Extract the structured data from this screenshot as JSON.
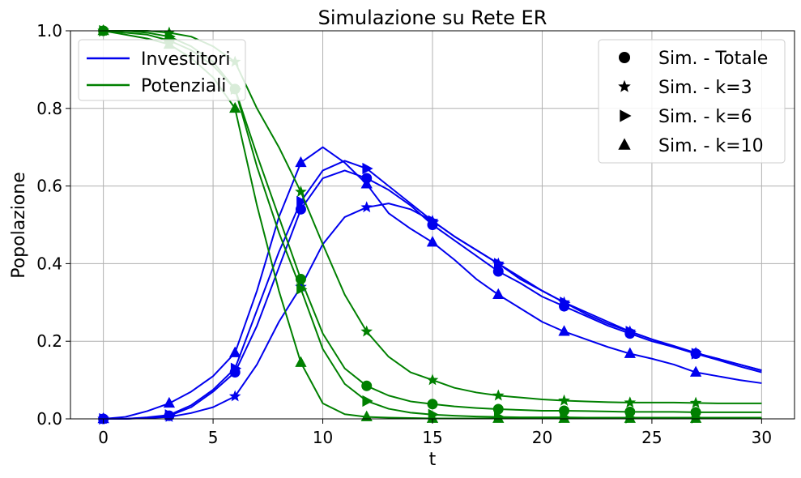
{
  "chart_data": {
    "type": "line",
    "title": "Simulazione su Rete ER",
    "xlabel": "t",
    "ylabel": "Popolazione",
    "xlim": [
      -1.5,
      31.5
    ],
    "ylim": [
      0,
      1
    ],
    "xticks": [
      0,
      5,
      10,
      15,
      20,
      25,
      30
    ],
    "yticks": [
      0.0,
      0.2,
      0.4,
      0.6,
      0.8,
      1.0
    ],
    "xtick_labels": [
      "0",
      "5",
      "10",
      "15",
      "20",
      "25",
      "30"
    ],
    "ytick_labels": [
      "0.0",
      "0.2",
      "0.4",
      "0.6",
      "0.8",
      "1.0"
    ],
    "grid": true,
    "colors": {
      "investitori": "#0000ee",
      "potenziali": "#008000"
    },
    "legend_lines": {
      "placement": "top-left",
      "entries": [
        {
          "label": "Investitori",
          "color": "#0000ee"
        },
        {
          "label": "Potenziali",
          "color": "#008000"
        }
      ]
    },
    "legend_markers": {
      "placement": "top-right",
      "entries": [
        {
          "label": "Sim. - Totale",
          "marker": "circle"
        },
        {
          "label": "Sim. - k=3",
          "marker": "star"
        },
        {
          "label": "Sim. - k=6",
          "marker": "triangle-right"
        },
        {
          "label": "Sim. - k=10",
          "marker": "triangle-up"
        }
      ]
    },
    "series": [
      {
        "group": "investitori",
        "marker": "circle",
        "x": [
          0,
          1,
          2,
          3,
          4,
          5,
          6,
          7,
          8,
          9,
          10,
          11,
          12,
          13,
          14,
          15,
          16,
          17,
          18,
          19,
          20,
          21,
          22,
          23,
          24,
          25,
          26,
          27,
          28,
          29,
          30
        ],
        "y": [
          0,
          0,
          0.003,
          0.008,
          0.03,
          0.07,
          0.12,
          0.24,
          0.39,
          0.54,
          0.62,
          0.64,
          0.62,
          0.59,
          0.55,
          0.5,
          0.46,
          0.42,
          0.38,
          0.35,
          0.315,
          0.29,
          0.265,
          0.24,
          0.22,
          0.2,
          0.185,
          0.168,
          0.155,
          0.14,
          0.125
        ]
      },
      {
        "group": "investitori",
        "marker": "star",
        "x": [
          0,
          1,
          2,
          3,
          4,
          5,
          6,
          7,
          8,
          9,
          10,
          11,
          12,
          13,
          14,
          15,
          16,
          17,
          18,
          19,
          20,
          21,
          22,
          23,
          24,
          25,
          26,
          27,
          28,
          29,
          30
        ],
        "y": [
          0,
          0,
          0.002,
          0.005,
          0.015,
          0.03,
          0.058,
          0.14,
          0.25,
          0.34,
          0.45,
          0.52,
          0.545,
          0.555,
          0.54,
          0.51,
          0.47,
          0.435,
          0.4,
          0.365,
          0.33,
          0.3,
          0.275,
          0.25,
          0.225,
          0.205,
          0.188,
          0.17,
          0.155,
          0.14,
          0.125
        ]
      },
      {
        "group": "investitori",
        "marker": "triangle-right",
        "x": [
          0,
          1,
          2,
          3,
          4,
          5,
          6,
          7,
          8,
          9,
          10,
          11,
          12,
          13,
          14,
          15,
          16,
          17,
          18,
          19,
          20,
          21,
          22,
          23,
          24,
          25,
          26,
          27,
          28,
          29,
          30
        ],
        "y": [
          0,
          0,
          0.004,
          0.01,
          0.035,
          0.075,
          0.13,
          0.28,
          0.43,
          0.56,
          0.64,
          0.665,
          0.645,
          0.6,
          0.555,
          0.51,
          0.47,
          0.435,
          0.4,
          0.36,
          0.33,
          0.3,
          0.27,
          0.245,
          0.225,
          0.205,
          0.185,
          0.168,
          0.152,
          0.135,
          0.12
        ]
      },
      {
        "group": "investitori",
        "marker": "triangle-up",
        "x": [
          0,
          1,
          2,
          3,
          4,
          5,
          6,
          7,
          8,
          9,
          10,
          11,
          12,
          13,
          14,
          15,
          16,
          17,
          18,
          19,
          20,
          21,
          22,
          23,
          24,
          25,
          26,
          27,
          28,
          29,
          30
        ],
        "y": [
          0,
          0.005,
          0.02,
          0.04,
          0.07,
          0.11,
          0.17,
          0.33,
          0.52,
          0.66,
          0.7,
          0.66,
          0.605,
          0.53,
          0.49,
          0.455,
          0.41,
          0.36,
          0.32,
          0.285,
          0.25,
          0.225,
          0.205,
          0.185,
          0.168,
          0.155,
          0.14,
          0.12,
          0.11,
          0.1,
          0.092
        ]
      },
      {
        "group": "potenziali",
        "marker": "circle",
        "x": [
          0,
          1,
          2,
          3,
          4,
          5,
          6,
          7,
          8,
          9,
          10,
          11,
          12,
          13,
          14,
          15,
          16,
          17,
          18,
          19,
          20,
          21,
          22,
          23,
          24,
          25,
          26,
          27,
          28,
          29,
          30
        ],
        "y": [
          1.0,
          0.995,
          0.99,
          0.975,
          0.95,
          0.91,
          0.85,
          0.68,
          0.52,
          0.36,
          0.22,
          0.13,
          0.085,
          0.06,
          0.045,
          0.038,
          0.032,
          0.028,
          0.025,
          0.023,
          0.021,
          0.021,
          0.02,
          0.019,
          0.018,
          0.018,
          0.018,
          0.017,
          0.017,
          0.017,
          0.017
        ]
      },
      {
        "group": "potenziali",
        "marker": "star",
        "x": [
          0,
          1,
          2,
          3,
          4,
          5,
          6,
          7,
          8,
          9,
          10,
          11,
          12,
          13,
          14,
          15,
          16,
          17,
          18,
          19,
          20,
          21,
          22,
          23,
          24,
          25,
          26,
          27,
          28,
          29,
          30
        ],
        "y": [
          1.0,
          1.0,
          1.0,
          0.995,
          0.985,
          0.96,
          0.92,
          0.8,
          0.7,
          0.585,
          0.45,
          0.32,
          0.225,
          0.16,
          0.12,
          0.1,
          0.08,
          0.068,
          0.06,
          0.055,
          0.05,
          0.047,
          0.045,
          0.043,
          0.042,
          0.042,
          0.042,
          0.041,
          0.04,
          0.04,
          0.04
        ]
      },
      {
        "group": "potenziali",
        "marker": "triangle-right",
        "x": [
          0,
          1,
          2,
          3,
          4,
          5,
          6,
          7,
          8,
          9,
          10,
          11,
          12,
          13,
          14,
          15,
          16,
          17,
          18,
          19,
          20,
          21,
          22,
          23,
          24,
          25,
          26,
          27,
          28,
          29,
          30
        ],
        "y": [
          1.0,
          1.0,
          0.995,
          0.985,
          0.96,
          0.92,
          0.85,
          0.65,
          0.48,
          0.335,
          0.18,
          0.09,
          0.046,
          0.026,
          0.016,
          0.011,
          0.008,
          0.006,
          0.005,
          0.004,
          0.004,
          0.004,
          0.003,
          0.003,
          0.003,
          0.003,
          0.003,
          0.003,
          0.003,
          0.003,
          0.003
        ]
      },
      {
        "group": "potenziali",
        "marker": "triangle-up",
        "x": [
          0,
          1,
          2,
          3,
          4,
          5,
          6,
          7,
          8,
          9,
          10,
          11,
          12,
          13,
          14,
          15,
          16,
          17,
          18,
          19,
          20,
          21,
          22,
          23,
          24,
          25,
          26,
          27,
          28,
          29,
          30
        ],
        "y": [
          1.0,
          0.99,
          0.98,
          0.965,
          0.93,
          0.88,
          0.8,
          0.55,
          0.33,
          0.145,
          0.04,
          0.012,
          0.005,
          0.003,
          0.002,
          0.001,
          0.001,
          0.001,
          0.001,
          0.001,
          0.001,
          0.001,
          0.001,
          0.001,
          0.001,
          0.001,
          0.001,
          0.001,
          0.001,
          0.001,
          0.001
        ]
      }
    ],
    "marker_x": [
      0,
      3,
      6,
      9,
      12,
      15,
      18,
      21,
      24,
      27
    ]
  }
}
